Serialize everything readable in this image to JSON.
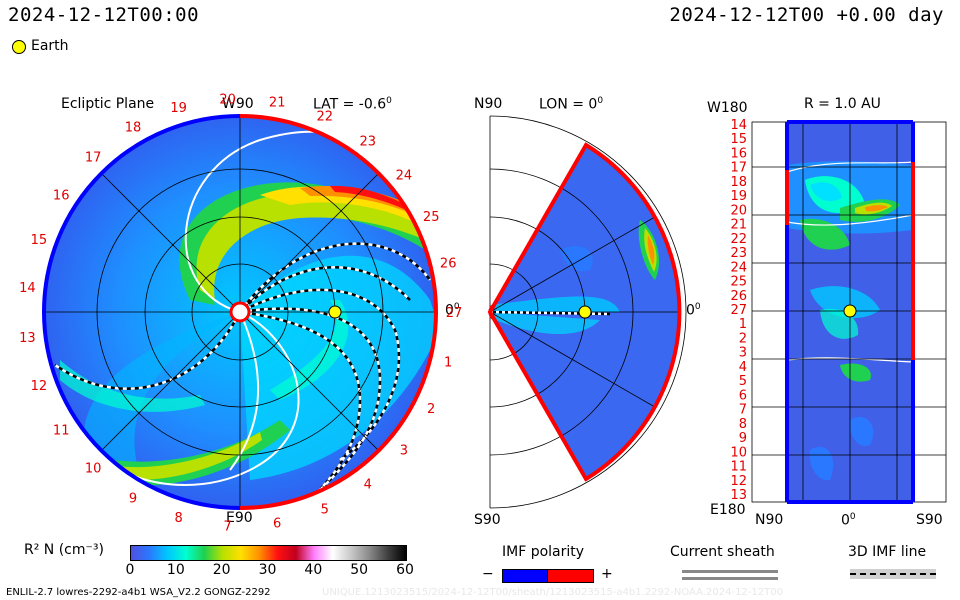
{
  "header": {
    "datetime_left": "2024-12-12T00:00",
    "datetime_right": "2024-12-12T00 +0.00 day"
  },
  "legend": {
    "earth_label": "Earth",
    "earth_color": "#ffff00"
  },
  "ecliptic_panel": {
    "title": "Ecliptic Plane",
    "top_label": "W90",
    "bottom_label": "E90",
    "right_label": "0",
    "lat_label": "LAT = -0.6",
    "carrington_ticks": [
      "1",
      "2",
      "3",
      "4",
      "5",
      "6",
      "7",
      "8",
      "9",
      "10",
      "11",
      "12",
      "13",
      "14",
      "15",
      "16",
      "17",
      "18",
      "19",
      "20",
      "21",
      "22",
      "23",
      "24",
      "25",
      "26",
      "27"
    ]
  },
  "meridional_panel": {
    "top_left_label": "N90",
    "bottom_left_label": "S90",
    "lon_label": "LON = 0",
    "right_label": "0"
  },
  "r_panel": {
    "title": "R = 1.0 AU",
    "top_left_label": "W180",
    "bottom_left_label": "E180",
    "x_tick_labels": [
      "N90",
      "0",
      "S90"
    ],
    "y_tick_labels": [
      "14",
      "15",
      "16",
      "17",
      "18",
      "19",
      "20",
      "21",
      "22",
      "23",
      "24",
      "25",
      "26",
      "27",
      "1",
      "2",
      "3",
      "4",
      "5",
      "6",
      "7",
      "8",
      "9",
      "10",
      "11",
      "12",
      "13"
    ]
  },
  "colorbar": {
    "label": "R² N (cm⁻³)",
    "ticks": [
      "0",
      "10",
      "20",
      "30",
      "40",
      "50",
      "60"
    ],
    "colors": [
      "#5050e0",
      "#2a78ff",
      "#00c8ff",
      "#00ffd0",
      "#20d050",
      "#b8e000",
      "#ffe000",
      "#ff9000",
      "#ff1010",
      "#c00020",
      "#ff80ff",
      "#ffffff",
      "#c8c8c8",
      "#8a8a8a",
      "#404040",
      "#000000"
    ]
  },
  "imf_polarity": {
    "title": "IMF polarity",
    "minus_label": "−",
    "plus_label": "+",
    "negative_color": "#0000ff",
    "positive_color": "#ff0000"
  },
  "current_sheath": {
    "title": "Current sheath"
  },
  "imf_line": {
    "title": "3D IMF line"
  },
  "footer": {
    "version": "ENLIL-2.7 lowres-2292-a4b1 WSA_V2.2 GONGZ-2292",
    "run_id": "UNIQUE.1213023515/2024-12-12T00/sheath/1213023515-a4b1.2292-NOAA.2024-12-12T00"
  }
}
